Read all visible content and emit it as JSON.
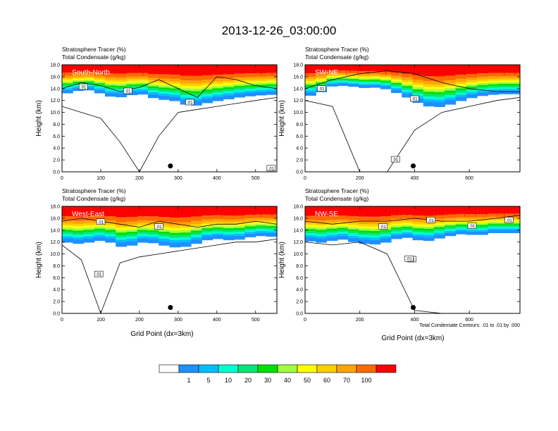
{
  "page": {
    "title": "2013-12-26_03:00:00",
    "contour_note": "Total Condensate Contours: .01 to .01 by .000"
  },
  "legend": {
    "colors": [
      "#ffffff",
      "#1e90ff",
      "#00bfff",
      "#00ffd0",
      "#00e676",
      "#00e000",
      "#a0ff40",
      "#ffff00",
      "#ffd000",
      "#ffa500",
      "#ff6a00",
      "#ff0000"
    ],
    "labels": [
      "1",
      "5",
      "10",
      "20",
      "30",
      "40",
      "50",
      "60",
      "70",
      "100"
    ]
  },
  "chart_data": [
    {
      "type": "heatmap",
      "section": "South-North",
      "line1": "Stratosphere Tracer   (%)",
      "line2": "Total Condensate   (g/kg)",
      "ylabel": "Height (km)",
      "xlabel": "",
      "xlim": [
        0,
        555
      ],
      "ylim": [
        0,
        18
      ],
      "xticks": [
        0,
        100,
        200,
        300,
        400,
        500
      ],
      "yticks": [
        "0.0",
        "2.0",
        "4.0",
        "6.0",
        "8.0",
        "10.0",
        "12.0",
        "14.0",
        "16.0",
        "18.0"
      ],
      "marker": {
        "x": 280,
        "y": 1.0
      },
      "contour_labels": [
        {
          "x": 55,
          "y": 14.2,
          "text": ".01"
        },
        {
          "x": 170,
          "y": 13.5,
          "text": ".01"
        },
        {
          "x": 330,
          "y": 11.6,
          "text": ".01"
        },
        {
          "x": 540,
          "y": 0.5,
          "text": ".01"
        }
      ],
      "tracer_base_km": [
        13.0,
        13.4,
        13.8,
        13.6,
        12.8,
        12.5,
        12.6,
        13.2,
        12.8,
        12.0,
        12.2,
        11.6,
        11.0,
        11.3,
        11.8,
        12.0,
        12.4,
        12.6,
        12.8,
        12.9,
        13.0
      ],
      "condensate_x": [
        0,
        50,
        100,
        150,
        200,
        250,
        300,
        350,
        400,
        450,
        500,
        555
      ],
      "condensate_top_km": [
        14.0,
        15.0,
        14.5,
        13.5,
        14.2,
        15.5,
        14.0,
        12.5,
        16.0,
        15.5,
        14.5,
        14.0
      ],
      "condensate_bottom_km": [
        11.0,
        10.0,
        9.0,
        5.0,
        0.0,
        6.0,
        10.0,
        10.5,
        11.0,
        11.5,
        12.0,
        12.5
      ]
    },
    {
      "type": "heatmap",
      "section": "SW-NE",
      "line1": "Stratosphere Tracer   (%)",
      "line2": "Total Condensate   (g/kg)",
      "ylabel": "Height (km)",
      "xlabel": "",
      "xlim": [
        0,
        785
      ],
      "ylim": [
        0,
        18
      ],
      "xticks": [
        0,
        200,
        400,
        600
      ],
      "yticks": [
        "0.0",
        "2.0",
        "4.0",
        "6.0",
        "8.0",
        "10.0",
        "12.0",
        "14.0",
        "16.0",
        "18.0"
      ],
      "marker": {
        "x": 395,
        "y": 1.0
      },
      "contour_labels": [
        {
          "x": 60,
          "y": 13.9,
          "text": ".01"
        },
        {
          "x": 400,
          "y": 12.2,
          "text": ".01"
        },
        {
          "x": 330,
          "y": 2.0,
          "text": ".01"
        }
      ],
      "tracer_base_km": [
        13.0,
        12.6,
        14.2,
        14.5,
        14.4,
        14.2,
        14.0,
        14.3,
        13.5,
        13.0,
        12.0,
        11.2,
        10.8,
        11.0,
        11.6,
        12.2,
        12.6,
        12.9,
        13.0,
        13.1,
        13.0
      ],
      "condensate_x": [
        0,
        100,
        200,
        300,
        400,
        500,
        600,
        700,
        785
      ],
      "condensate_top_km": [
        14.0,
        15.5,
        16.5,
        17.0,
        16.5,
        15.0,
        14.0,
        13.5,
        13.5
      ],
      "condensate_bottom_km": [
        12.0,
        11.0,
        0.0,
        0.0,
        7.0,
        10.0,
        11.0,
        12.0,
        12.5
      ]
    },
    {
      "type": "heatmap",
      "section": "West-East",
      "line1": "Stratosphere Tracer   (%)",
      "line2": "Total Condensate   (g/kg)",
      "ylabel": "Height (km)",
      "xlabel": "Grid Point (dx=3km)",
      "xlim": [
        0,
        555
      ],
      "ylim": [
        0,
        18
      ],
      "xticks": [
        0,
        100,
        200,
        300,
        400,
        500
      ],
      "yticks": [
        "0.0",
        "2.0",
        "4.0",
        "6.0",
        "8.0",
        "10.0",
        "12.0",
        "14.0",
        "16.0",
        "18.0"
      ],
      "marker": {
        "x": 280,
        "y": 1.0
      },
      "contour_labels": [
        {
          "x": 100,
          "y": 15.3,
          "text": ".01"
        },
        {
          "x": 250,
          "y": 14.5,
          "text": ".01"
        },
        {
          "x": 95,
          "y": 6.5,
          "text": ".01"
        }
      ],
      "tracer_base_km": [
        12.2,
        11.6,
        11.8,
        12.0,
        12.4,
        11.4,
        11.0,
        11.8,
        12.0,
        11.6,
        11.2,
        11.0,
        11.4,
        12.0,
        12.6,
        12.4,
        12.2,
        12.6,
        13.0,
        13.0,
        12.8
      ],
      "condensate_x": [
        0,
        50,
        100,
        150,
        200,
        250,
        300,
        350,
        400,
        450,
        500,
        555
      ],
      "condensate_top_km": [
        15.5,
        16.0,
        15.5,
        15.0,
        14.5,
        15.5,
        15.0,
        14.5,
        15.0,
        15.0,
        15.5,
        15.0
      ],
      "condensate_bottom_km": [
        11.5,
        9.0,
        0.0,
        8.5,
        9.5,
        10.0,
        10.5,
        11.0,
        11.5,
        12.0,
        12.0,
        12.5
      ]
    },
    {
      "type": "heatmap",
      "section": "NW-SE",
      "line1": "Stratosphere Tracer   (%)",
      "line2": "Total Condensate   (g/kg)",
      "ylabel": "Height (km)",
      "xlabel": "Grid Point (dx=3km)",
      "xlim": [
        0,
        785
      ],
      "ylim": [
        0,
        18
      ],
      "xticks": [
        0,
        200,
        400,
        600
      ],
      "yticks": [
        "0.0",
        "2.0",
        "4.0",
        "6.0",
        "8.0",
        "10.0",
        "12.0",
        "14.0",
        "16.0",
        "18.0"
      ],
      "marker": {
        "x": 395,
        "y": 1.0
      },
      "contour_labels": [
        {
          "x": 285,
          "y": 14.5,
          "text": ".01"
        },
        {
          "x": 390,
          "y": 9.0,
          "text": ".01"
        },
        {
          "x": 380,
          "y": 9.1,
          "text": ".01"
        },
        {
          "x": 460,
          "y": 15.6,
          "text": ".01"
        },
        {
          "x": 610,
          "y": 14.6,
          "text": ".01"
        },
        {
          "x": 745,
          "y": 15.6,
          "text": ".01"
        }
      ],
      "tracer_base_km": [
        12.2,
        12.0,
        11.8,
        12.6,
        12.2,
        11.8,
        11.6,
        11.6,
        12.2,
        12.8,
        12.6,
        12.0,
        12.4,
        12.8,
        13.2,
        13.4,
        13.0,
        13.4,
        13.6,
        13.4,
        13.6
      ],
      "condensate_x": [
        0,
        100,
        200,
        300,
        400,
        500,
        600,
        700,
        785
      ],
      "condensate_top_km": [
        15.5,
        15.0,
        15.5,
        15.5,
        16.0,
        15.5,
        15.5,
        16.0,
        16.5
      ],
      "condensate_bottom_km": [
        12.0,
        11.5,
        12.0,
        10.0,
        0.5,
        0.0,
        0.0,
        0.0,
        0.0
      ]
    }
  ]
}
